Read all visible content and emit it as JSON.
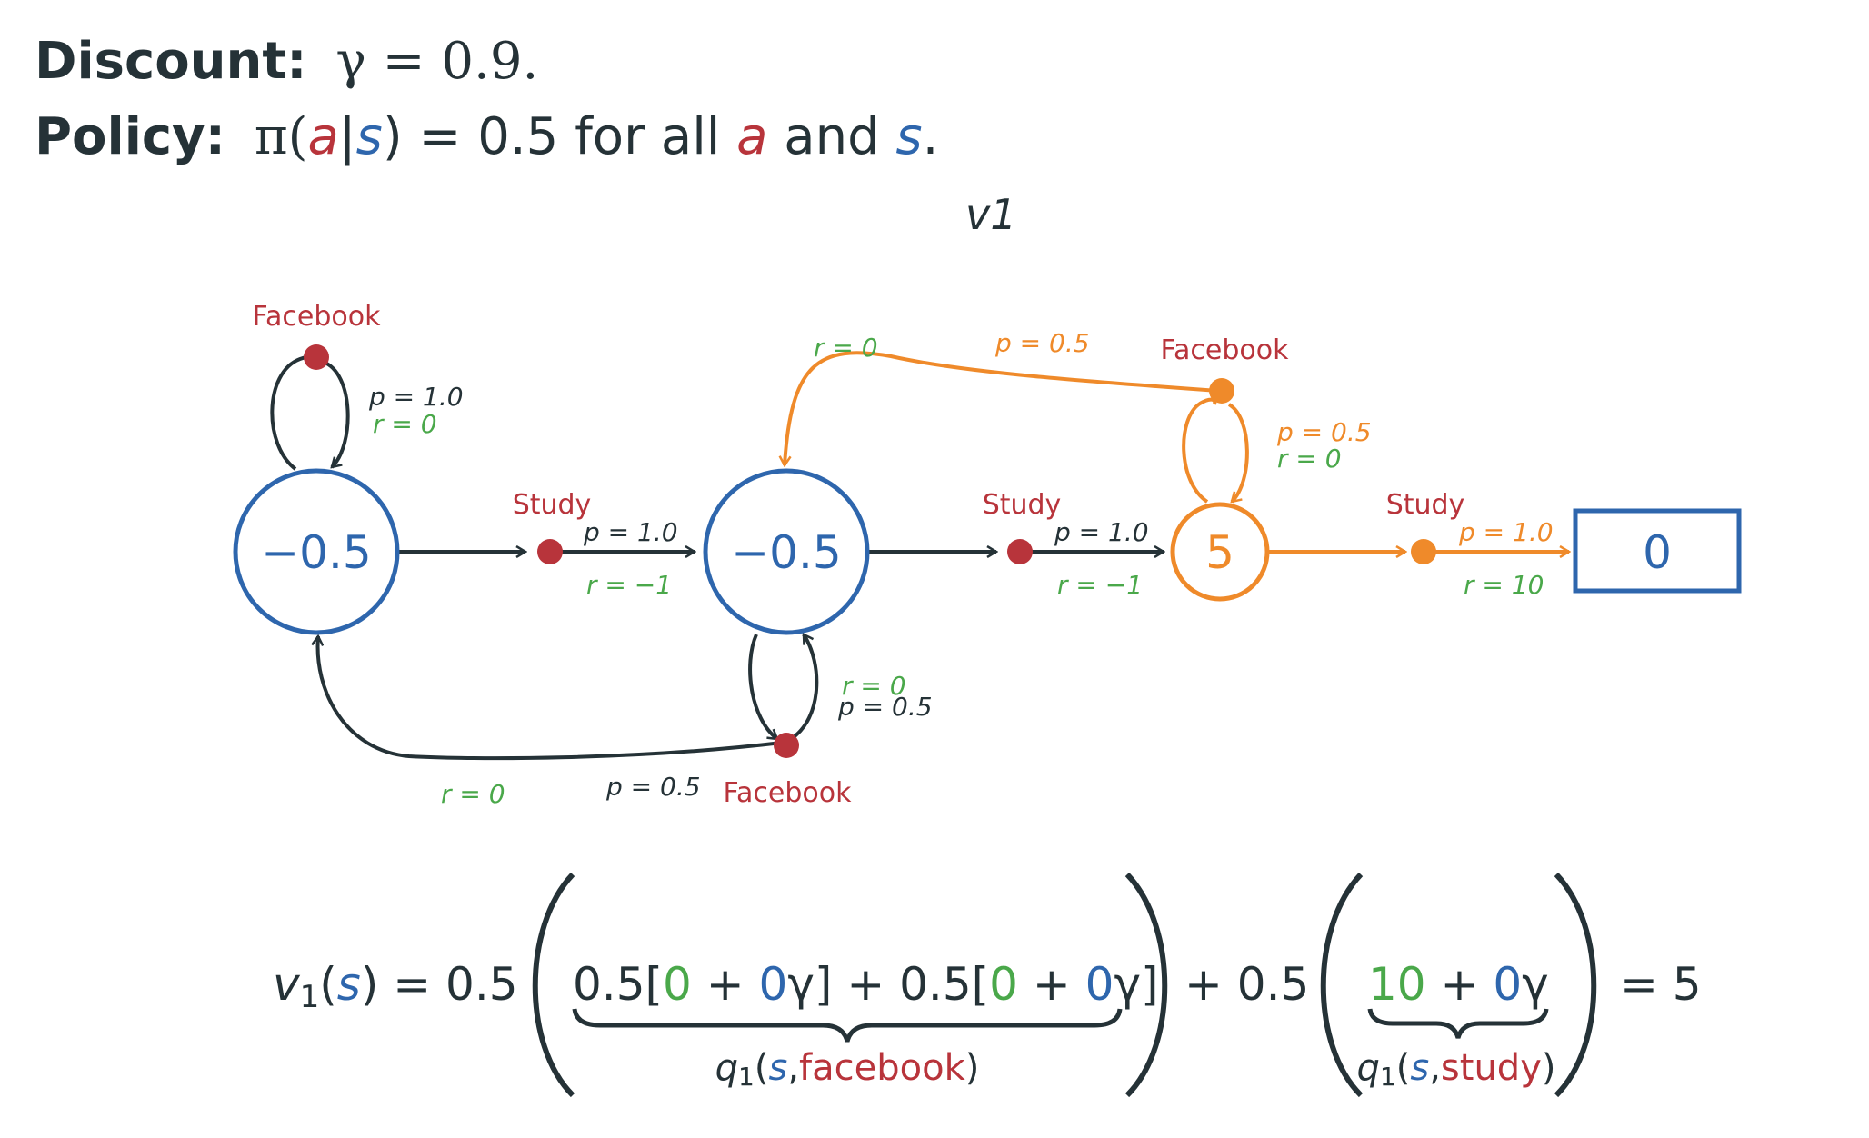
{
  "colors": {
    "dark": "#253237",
    "red": "#b8343b",
    "blue": "#2e66ad",
    "green": "#4aa84a",
    "orange": "#ef8a2a"
  },
  "header": {
    "discount_label": "Discount:",
    "discount_value": "γ = 0.9.",
    "policy_label": "Policy:",
    "policy_pi": "π(",
    "policy_a": "a",
    "policy_bar": "|",
    "policy_s": "s",
    "policy_close": ") = 0.5 for all ",
    "policy_a2": "a",
    "policy_and": " and ",
    "policy_s2": "s",
    "policy_end": "."
  },
  "title": "v1",
  "diagram": {
    "states": [
      "−0.5",
      "−0.5",
      "5",
      "0"
    ],
    "facebook": "Facebook",
    "study": "Study",
    "s1_self": {
      "p": "p = 1.0",
      "r": "r = 0"
    },
    "s1_study": {
      "p": "p = 1.0",
      "r": "r = −1"
    },
    "s2_study": {
      "p": "p = 1.0",
      "r": "r = −1"
    },
    "s2_self": {
      "r": "r = 0",
      "p": "p = 0.5"
    },
    "s2_back": {
      "r": "r = 0",
      "p": "p = 0.5"
    },
    "s3_top": {
      "r": "r = 0",
      "p": "p = 0.5"
    },
    "s3_self": {
      "p": "p = 0.5",
      "r": "r = 0"
    },
    "s3_study": {
      "p": "p = 1.0",
      "r": "r = 10"
    }
  },
  "equation": {
    "lhs_v": "v",
    "lhs_sub": "1",
    "lhs_open": "(",
    "lhs_s": "s",
    "lhs_close": ") = 0.5",
    "t1_a": "0.5[",
    "t1_r": "0",
    "t1_plus": " + ",
    "t1_v": "0",
    "t1_g": "γ] + 0.5[",
    "t1_r2": "0",
    "t1_plus2": " + ",
    "t1_v2": "0",
    "t1_g2": "γ]",
    "q_fb_q": "q",
    "q_fb_sub": "1",
    "q_fb_open": "(",
    "q_fb_s": "s",
    "q_fb_comma": ",",
    "q_fb_action": "facebook",
    "q_fb_close": ")",
    "mid": "+ 0.5",
    "t2_r": "10",
    "t2_plus": " + ",
    "t2_v": "0",
    "t2_g": "γ",
    "q_st_q": "q",
    "q_st_sub": "1",
    "q_st_open": "(",
    "q_st_s": "s",
    "q_st_comma": ",",
    "q_st_action": "study",
    "q_st_close": ")",
    "result": "= 5"
  }
}
